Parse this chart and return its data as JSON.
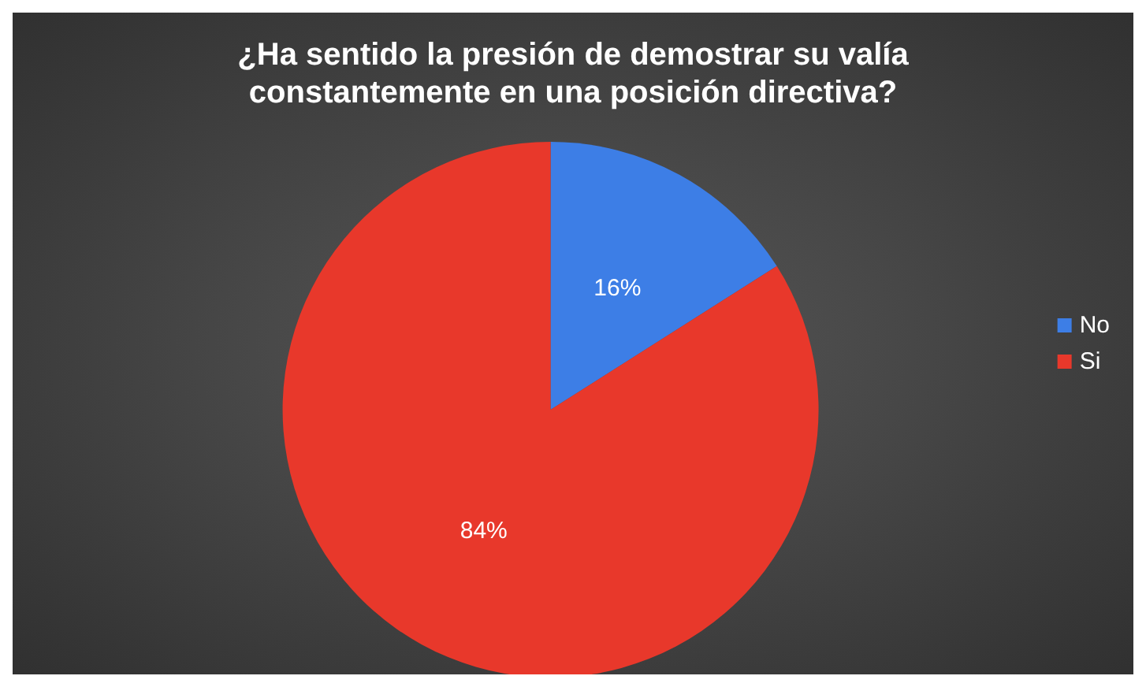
{
  "chart_data": {
    "type": "pie",
    "title": "¿Ha sentido la presión de demostrar su valía\nconstantemente en una posición directiva?",
    "categories": [
      "No",
      "Si"
    ],
    "values": [
      16,
      84
    ],
    "colors": [
      "#3d7ee6",
      "#e8382b"
    ],
    "value_labels": [
      "16%",
      "84%"
    ],
    "legend": "right"
  }
}
